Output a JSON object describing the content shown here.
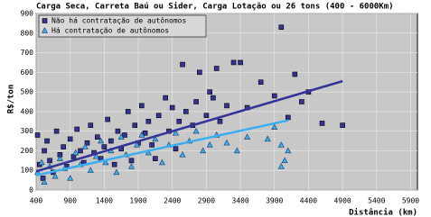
{
  "chart_data": {
    "type": "scatter",
    "title": "Carga Seca, Carreta Baú ou Sider, Carga Lotação ou 26 tons (400 - 6000Km)",
    "y_label": "R$/ton",
    "x_label": "Distância (km)",
    "xlim": [
      400,
      6000
    ],
    "ylim": [
      0,
      900
    ],
    "xticks": [
      400,
      900,
      1400,
      1900,
      2400,
      2900,
      3400,
      3900,
      4400,
      4900,
      5400,
      5900
    ],
    "yticks": [
      0,
      100,
      200,
      300,
      400,
      500,
      600,
      700,
      800,
      900
    ],
    "grid": true,
    "legend": "top-left",
    "series": [
      {
        "name": "Não há contratação de autônomos",
        "color": "#33339a",
        "marker": "square",
        "x": [
          420,
          450,
          500,
          520,
          560,
          600,
          650,
          700,
          750,
          800,
          850,
          900,
          950,
          1000,
          1050,
          1100,
          1150,
          1200,
          1250,
          1300,
          1350,
          1400,
          1450,
          1500,
          1550,
          1600,
          1650,
          1700,
          1750,
          1800,
          1850,
          1900,
          1950,
          2000,
          2050,
          2100,
          2150,
          2200,
          2300,
          2350,
          2400,
          2450,
          2500,
          2550,
          2600,
          2700,
          2750,
          2800,
          2900,
          2950,
          3000,
          3050,
          3100,
          3200,
          3300,
          3400,
          3500,
          3700,
          3900,
          4000,
          4100,
          4200,
          4300,
          4600,
          4900,
          4400
        ],
        "values": [
          280,
          130,
          60,
          200,
          250,
          150,
          90,
          300,
          180,
          220,
          120,
          260,
          170,
          310,
          200,
          140,
          240,
          330,
          190,
          270,
          160,
          220,
          360,
          250,
          130,
          300,
          210,
          280,
          400,
          150,
          330,
          240,
          430,
          290,
          350,
          230,
          160,
          380,
          470,
          300,
          420,
          210,
          350,
          640,
          400,
          330,
          450,
          600,
          380,
          500,
          470,
          620,
          350,
          430,
          650,
          650,
          420,
          550,
          480,
          830,
          370,
          590,
          450,
          340,
          330,
          500
        ],
        "trend": {
          "x": [
            400,
            4900
          ],
          "y": [
            95,
            555
          ]
        }
      },
      {
        "name": "Há contratação de autônomos",
        "color": "#3aaef0",
        "marker": "triangle",
        "x": [
          420,
          480,
          520,
          600,
          680,
          750,
          820,
          900,
          980,
          1050,
          1120,
          1200,
          1280,
          1350,
          1420,
          1500,
          1580,
          1650,
          1720,
          1800,
          1880,
          1950,
          2050,
          2150,
          2250,
          2350,
          2450,
          2550,
          2650,
          2750,
          2850,
          2950,
          3050,
          3200,
          3350,
          3500,
          3800,
          4000,
          4050,
          4100,
          4000,
          3900
        ],
        "values": [
          90,
          140,
          40,
          120,
          70,
          160,
          110,
          60,
          190,
          130,
          220,
          100,
          170,
          250,
          140,
          200,
          90,
          270,
          180,
          120,
          230,
          280,
          190,
          260,
          140,
          230,
          290,
          180,
          250,
          300,
          200,
          230,
          280,
          240,
          200,
          270,
          260,
          230,
          150,
          200,
          120,
          320
        ],
        "trend": {
          "x": [
            400,
            4100
          ],
          "y": [
            75,
            355
          ]
        }
      }
    ]
  }
}
